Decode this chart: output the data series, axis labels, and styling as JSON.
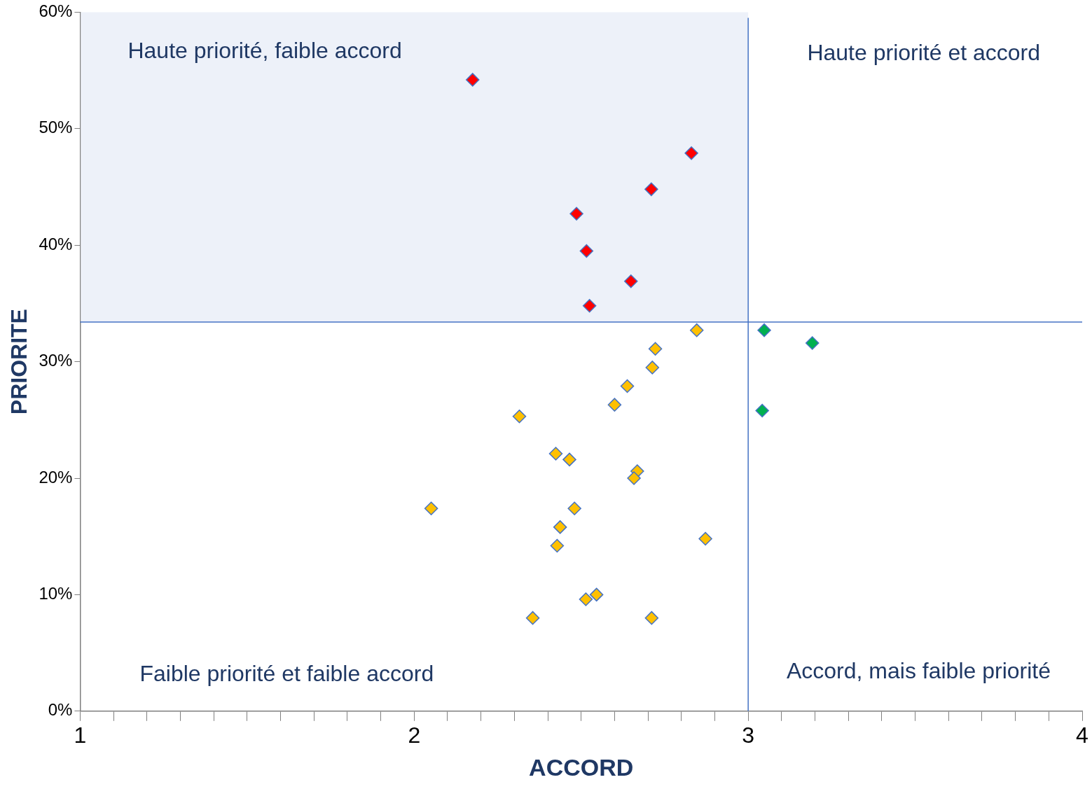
{
  "chart_data": {
    "type": "scatter",
    "xlabel": "ACCORD",
    "ylabel": "PRIORITE",
    "xlim": [
      1,
      4
    ],
    "xticks": [
      1,
      {
        "value": 1.1,
        "label": null
      },
      {
        "value": 1.2,
        "label": null
      },
      {
        "value": 1.3,
        "label": null
      },
      {
        "value": 1.4,
        "label": null
      },
      {
        "value": 1.5,
        "label": null
      },
      {
        "value": 1.6,
        "label": null
      },
      {
        "value": 1.7,
        "label": null
      },
      {
        "value": 1.8,
        "label": null
      },
      {
        "value": 1.9,
        "label": null
      },
      2,
      {
        "value": 2.1,
        "label": null
      },
      {
        "value": 2.2,
        "label": null
      },
      {
        "value": 2.3,
        "label": null
      },
      {
        "value": 2.4,
        "label": null
      },
      {
        "value": 2.5,
        "label": null
      },
      {
        "value": 2.6,
        "label": null
      },
      {
        "value": 2.7,
        "label": null
      },
      {
        "value": 2.8,
        "label": null
      },
      {
        "value": 2.9,
        "label": null
      },
      3,
      {
        "value": 3.1,
        "label": null
      },
      {
        "value": 3.2,
        "label": null
      },
      {
        "value": 3.3,
        "label": null
      },
      {
        "value": 3.4,
        "label": null
      },
      {
        "value": 3.5,
        "label": null
      },
      {
        "value": 3.6,
        "label": null
      },
      {
        "value": 3.7,
        "label": null
      },
      {
        "value": 3.8,
        "label": null
      },
      {
        "value": 3.9,
        "label": null
      },
      4
    ],
    "ylim": [
      0,
      60
    ],
    "yticks": [
      {
        "value": 0,
        "label": "0%"
      },
      {
        "value": 10,
        "label": "10%"
      },
      {
        "value": 20,
        "label": "20%"
      },
      {
        "value": 30,
        "label": "30%"
      },
      {
        "value": 40,
        "label": "40%"
      },
      {
        "value": 50,
        "label": "50%"
      },
      {
        "value": 60,
        "label": "60%"
      }
    ],
    "marker": "diamond",
    "legend": false,
    "grid": false,
    "series": [
      {
        "color": "#ff0000",
        "x": [
          2.175,
          2.83,
          2.71,
          2.486,
          2.516,
          2.649,
          2.525
        ],
        "values": [
          54.2,
          47.9,
          44.8,
          42.7,
          39.5,
          36.9,
          34.8
        ]
      },
      {
        "color": "#00b050",
        "x": [
          3.048,
          3.192,
          3.042
        ],
        "values": [
          32.7,
          31.6,
          25.8
        ]
      },
      {
        "color": "#ffc000",
        "x": [
          2.846,
          2.722,
          2.713,
          2.638,
          2.6,
          2.315,
          2.424,
          2.465,
          2.668,
          2.658,
          2.051,
          2.48,
          2.437,
          2.428,
          2.872,
          2.546,
          2.514,
          2.355,
          2.711
        ],
        "values": [
          32.7,
          31.1,
          29.5,
          27.9,
          26.3,
          25.3,
          22.1,
          21.6,
          20.6,
          20.0,
          17.4,
          17.4,
          15.8,
          14.2,
          14.8,
          10.0,
          9.6,
          8.0,
          8.0
        ]
      }
    ],
    "ref_lines": [
      {
        "axis": "x",
        "value": 3,
        "color": "#4472c4"
      },
      {
        "axis": "y",
        "value": 33.4,
        "color": "#4472c4"
      }
    ],
    "bands": [
      {
        "axis": "y",
        "from": 33.4,
        "to": 60,
        "color": "#edf1f9"
      }
    ],
    "annotations": [
      "Haute priorité, faible accord",
      "Haute priorité et accord",
      "Faible priorité et faible accord",
      "Accord, mais faible priorité"
    ]
  }
}
